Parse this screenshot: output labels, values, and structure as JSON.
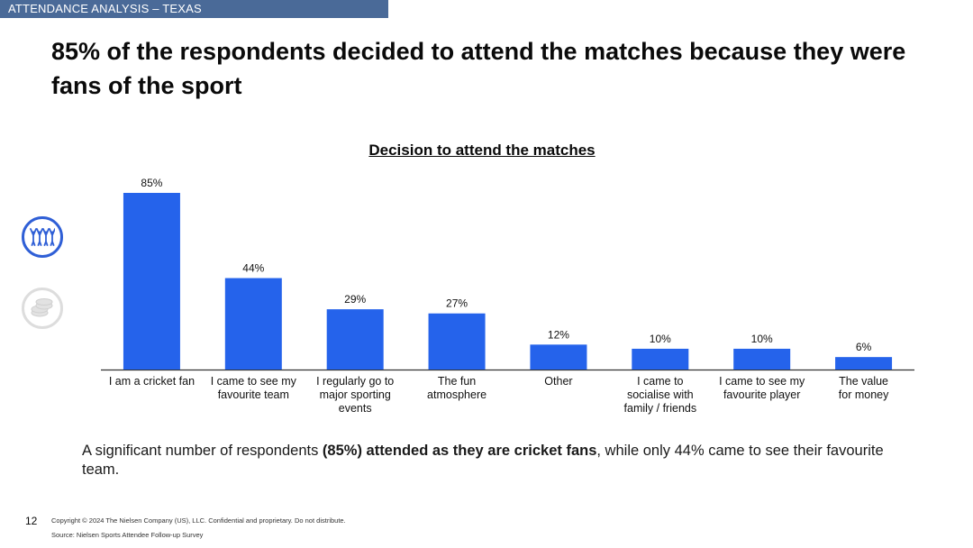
{
  "section_tag": "ATTENDANCE ANALYSIS – TEXAS",
  "headline": "85% of the respondents decided to attend the matches because they were fans of the sport",
  "summary": {
    "before": "A significant number of respondents ",
    "bold": "(85%) attended as they are cricket fans",
    "after": ", while only 44% came to see their favourite team."
  },
  "footer": {
    "page_number": "12",
    "copyright": "Copyright © 2024 The Nielsen Company (US), LLC. Confidential and proprietary. Do not distribute.",
    "source": "Source: Nielsen Sports Attendee Follow-up Survey"
  },
  "side_icons": [
    "fans-icon",
    "money-coins-icon"
  ],
  "colors": {
    "bar": "#2563eb",
    "tag_bg": "#4a6a98",
    "active_icon": "#2f5fd6",
    "inactive_icon": "#d9d9d9"
  },
  "chart_data": {
    "type": "bar",
    "title": "Decision to attend the matches",
    "categories": [
      [
        "I am a cricket fan"
      ],
      [
        "I came to see my",
        "favourite team"
      ],
      [
        "I regularly go to",
        "major sporting",
        "events"
      ],
      [
        "The fun",
        "atmosphere"
      ],
      [
        "Other"
      ],
      [
        "I came to",
        "socialise with",
        "family / friends"
      ],
      [
        "I came to see my",
        "favourite player"
      ],
      [
        "The value",
        "for money"
      ]
    ],
    "values": [
      85,
      44,
      29,
      27,
      12,
      10,
      10,
      6
    ],
    "value_labels": [
      "85%",
      "44%",
      "29%",
      "27%",
      "12%",
      "10%",
      "10%",
      "6%"
    ],
    "unit": "%",
    "ylim": [
      0,
      100
    ],
    "grid": false,
    "legend": "none"
  }
}
